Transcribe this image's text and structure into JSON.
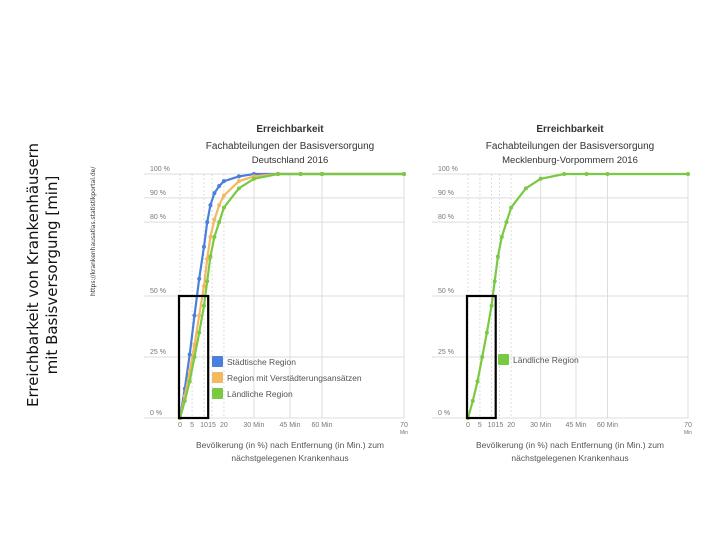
{
  "slide_title": [
    "Erreichbarkeit von Krankenhäusern",
    "mit Basisversorgung [min]"
  ],
  "source_url": "https://krankenhausatlas.statistikportal.de/",
  "colors": {
    "staedtisch": "#4a7fdb",
    "verstaedterung": "#f4b860",
    "laendlich": "#7ac943",
    "grid": "#dddddd",
    "title": "#333333",
    "axis_text": "#777777"
  },
  "chart_data": [
    {
      "type": "line",
      "title": "Erreichbarkeit",
      "subtitle": "Fachabteilungen der Basisversorgung",
      "subtitle2": "Deutschland 2016",
      "xlabel": "Bevölkerung (in %) nach Entfernung (in Min.) zum nächstgelegenen Krankenhaus",
      "xlabel_lines": [
        "Bevölkerung (in %) nach Entfernung (in Min.) zum",
        "nächstgelegenen Krankenhaus"
      ],
      "xticks": [
        "0",
        "5",
        "10",
        "15",
        "20",
        "30 Min",
        "45 Min",
        "60 Min",
        "70 Min"
      ],
      "xtick_values": [
        0,
        5,
        10,
        15,
        20,
        30,
        45,
        60,
        70
      ],
      "yticks": [
        "0 %",
        "25 %",
        "50 %",
        "80 %",
        "90 %",
        "100 %"
      ],
      "ytick_values": [
        0,
        25,
        50,
        80,
        90,
        100
      ],
      "xlim": [
        0,
        70
      ],
      "ylim": [
        0,
        100
      ],
      "legend": [
        "Städtische Region",
        "Region mit Verstädterungsansätzen",
        "Ländliche Region"
      ],
      "series": [
        {
          "name": "Städtische Region",
          "color": "#4a7fdb",
          "x": [
            0,
            2,
            4,
            6,
            8,
            10,
            12,
            14,
            16,
            18,
            20,
            25,
            30,
            40,
            50,
            60,
            70
          ],
          "y": [
            0,
            12,
            26,
            42,
            57,
            70,
            80,
            87,
            92,
            95,
            97,
            99,
            100,
            100,
            100,
            100,
            100
          ]
        },
        {
          "name": "Region mit Verstädterungsansätzen",
          "color": "#f4b860",
          "x": [
            0,
            2,
            4,
            6,
            8,
            10,
            12,
            14,
            16,
            18,
            20,
            25,
            30,
            40,
            50,
            60,
            70
          ],
          "y": [
            0,
            9,
            19,
            30,
            42,
            54,
            65,
            74,
            81,
            87,
            91,
            97,
            99,
            100,
            100,
            100,
            100
          ]
        },
        {
          "name": "Ländliche Region",
          "color": "#7ac943",
          "x": [
            0,
            2,
            4,
            6,
            8,
            10,
            12,
            14,
            16,
            18,
            20,
            25,
            30,
            40,
            50,
            60,
            70
          ],
          "y": [
            0,
            7,
            15,
            25,
            35,
            46,
            56,
            66,
            74,
            80,
            86,
            94,
            98,
            100,
            100,
            100,
            100
          ]
        }
      ],
      "highlight_box": {
        "x": [
          0,
          12
        ],
        "y": [
          0,
          50
        ]
      }
    },
    {
      "type": "line",
      "title": "Erreichbarkeit",
      "subtitle": "Fachabteilungen der Basisversorgung",
      "subtitle2": "Mecklenburg-Vorpommern 2016",
      "xlabel": "Bevölkerung (in %) nach Entfernung (in Min.) zum nächstgelegenen Krankenhaus",
      "xlabel_lines": [
        "Bevölkerung (in %) nach Entfernung (in Min.) zum",
        "nächstgelegenen Krankenhaus"
      ],
      "xticks": [
        "0",
        "5",
        "10",
        "15",
        "20",
        "30 Min",
        "45 Min",
        "60 Min",
        "70 Min"
      ],
      "xtick_values": [
        0,
        5,
        10,
        15,
        20,
        30,
        45,
        60,
        70
      ],
      "yticks": [
        "0 %",
        "25 %",
        "50 %",
        "80 %",
        "90 %",
        "100 %"
      ],
      "ytick_values": [
        0,
        25,
        50,
        80,
        90,
        100
      ],
      "xlim": [
        0,
        70
      ],
      "ylim": [
        0,
        100
      ],
      "legend": [
        "Ländliche Region"
      ],
      "series": [
        {
          "name": "Ländliche Region",
          "color": "#7ac943",
          "x": [
            0,
            2,
            4,
            6,
            8,
            10,
            12,
            14,
            16,
            18,
            20,
            25,
            30,
            40,
            50,
            60,
            70
          ],
          "y": [
            0,
            7,
            15,
            25,
            35,
            46,
            56,
            66,
            74,
            80,
            86,
            94,
            98,
            100,
            100,
            100,
            100
          ]
        }
      ],
      "highlight_box": {
        "x": [
          0,
          12
        ],
        "y": [
          0,
          50
        ]
      }
    }
  ]
}
